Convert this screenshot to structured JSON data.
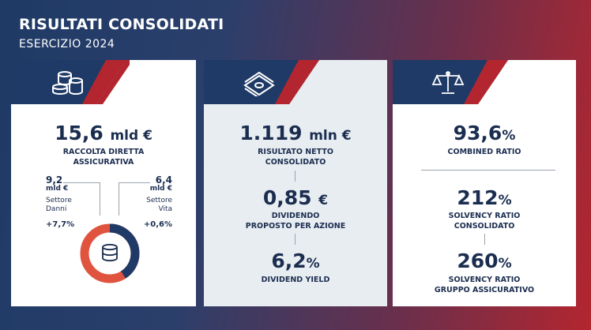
{
  "header": {
    "title": "RISULTATI CONSOLIDATI",
    "subtitle": "ESERCIZIO 2024"
  },
  "panel1": {
    "icon": "coins-icon",
    "main_value": "15,6",
    "main_unit": "mld €",
    "main_label_line1": "RACCOLTA DIRETTA",
    "main_label_line2": "ASSICURATIVA",
    "left": {
      "value": "9,2",
      "unit": "mld €",
      "label_line1": "Settore",
      "label_line2": "Danni",
      "change": "+7,7%"
    },
    "right": {
      "value": "6,4",
      "unit": "mld €",
      "label_line1": "Settore",
      "label_line2": "Vita",
      "change": "+0,6%"
    },
    "donut": {
      "icon": "database-icon",
      "danni_share": 0.59,
      "vita_share": 0.41,
      "danni_color": "#e0533f",
      "vita_color": "#1f3a66"
    }
  },
  "panel2": {
    "icon": "banknotes-icon",
    "items": [
      {
        "value": "1.119",
        "unit": "mln €",
        "label_line1": "RISULTATO NETTO",
        "label_line2": "CONSOLIDATO"
      },
      {
        "value": "0,85",
        "unit": "€",
        "label_line1": "DIVIDENDO",
        "label_line2": "PROPOSTO PER AZIONE"
      },
      {
        "value": "6,2",
        "unit": "%",
        "label_line1": "DIVIDEND YIELD",
        "label_line2": ""
      }
    ]
  },
  "panel3": {
    "icon": "scales-icon",
    "items": [
      {
        "value": "93,6",
        "unit": "%",
        "label_line1": "COMBINED RATIO",
        "label_line2": ""
      },
      {
        "value": "212",
        "unit": "%",
        "label_line1": "SOLVENCY RATIO",
        "label_line2": "CONSOLIDATO"
      },
      {
        "value": "260",
        "unit": "%",
        "label_line1": "SOLVENCY RATIO",
        "label_line2": "GRUPPO ASSICURATIVO"
      }
    ]
  },
  "colors": {
    "navy": "#1b2d4f",
    "red": "#b3262f",
    "light_panel": "#e8edf1"
  }
}
